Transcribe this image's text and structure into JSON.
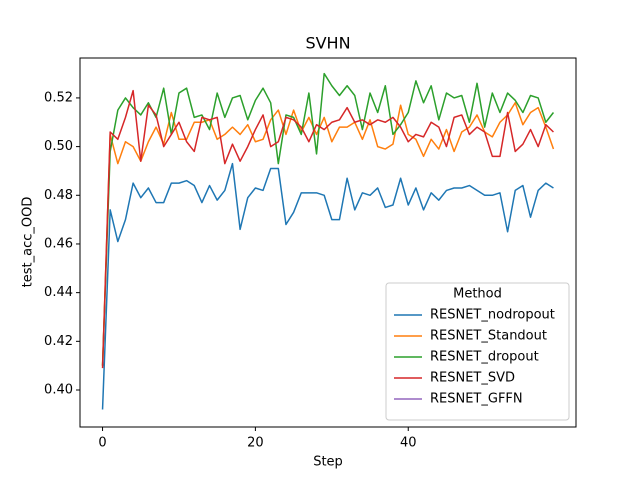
{
  "chart_data": {
    "type": "line",
    "title": "SVHN",
    "xlabel": "Step",
    "ylabel": "test_acc_OOD",
    "x": [
      0,
      1,
      2,
      3,
      4,
      5,
      6,
      7,
      8,
      9,
      10,
      11,
      12,
      13,
      14,
      15,
      16,
      17,
      18,
      19,
      20,
      21,
      22,
      23,
      24,
      25,
      26,
      27,
      28,
      29,
      30,
      31,
      32,
      33,
      34,
      35,
      36,
      37,
      38,
      39,
      40,
      41,
      42,
      43,
      44,
      45,
      46,
      47,
      48,
      49,
      50,
      51,
      52,
      53,
      54,
      55,
      56,
      57,
      58,
      59
    ],
    "series": [
      {
        "name": "RESNET_nodropout",
        "color": "#1f77b4",
        "values": [
          0.392,
          0.474,
          0.461,
          0.47,
          0.485,
          0.479,
          0.483,
          0.477,
          0.477,
          0.485,
          0.485,
          0.486,
          0.484,
          0.477,
          0.484,
          0.478,
          0.482,
          0.493,
          0.466,
          0.479,
          0.483,
          0.482,
          0.491,
          0.491,
          0.468,
          0.473,
          0.481,
          0.481,
          0.481,
          0.48,
          0.47,
          0.47,
          0.487,
          0.474,
          0.481,
          0.48,
          0.483,
          0.475,
          0.476,
          0.487,
          0.476,
          0.483,
          0.474,
          0.481,
          0.478,
          0.482,
          0.483,
          0.483,
          0.484,
          0.482,
          0.48,
          0.48,
          0.481,
          0.465,
          0.482,
          0.484,
          0.471,
          0.482,
          0.485,
          0.483
        ]
      },
      {
        "name": "RESNET_Standout",
        "color": "#ff7f0e",
        "values": [
          0.41,
          0.505,
          0.493,
          0.502,
          0.5,
          0.494,
          0.502,
          0.508,
          0.501,
          0.514,
          0.503,
          0.503,
          0.51,
          0.51,
          0.511,
          0.503,
          0.505,
          0.508,
          0.505,
          0.509,
          0.502,
          0.503,
          0.511,
          0.515,
          0.505,
          0.515,
          0.506,
          0.512,
          0.505,
          0.512,
          0.502,
          0.508,
          0.508,
          0.51,
          0.503,
          0.511,
          0.5,
          0.499,
          0.501,
          0.517,
          0.505,
          0.503,
          0.496,
          0.503,
          0.499,
          0.507,
          0.498,
          0.506,
          0.508,
          0.513,
          0.506,
          0.504,
          0.51,
          0.513,
          0.518,
          0.509,
          0.514,
          0.516,
          0.508,
          0.499
        ]
      },
      {
        "name": "RESNET_dropout",
        "color": "#2ca02c",
        "values": [
          0.41,
          0.498,
          0.515,
          0.52,
          0.516,
          0.513,
          0.518,
          0.512,
          0.524,
          0.505,
          0.522,
          0.524,
          0.512,
          0.513,
          0.507,
          0.522,
          0.512,
          0.52,
          0.521,
          0.511,
          0.519,
          0.524,
          0.518,
          0.493,
          0.513,
          0.512,
          0.505,
          0.522,
          0.497,
          0.53,
          0.525,
          0.521,
          0.525,
          0.521,
          0.507,
          0.522,
          0.514,
          0.525,
          0.505,
          0.509,
          0.514,
          0.527,
          0.518,
          0.525,
          0.511,
          0.522,
          0.52,
          0.521,
          0.51,
          0.526,
          0.508,
          0.522,
          0.514,
          0.522,
          0.519,
          0.514,
          0.521,
          0.52,
          0.51,
          0.514
        ]
      },
      {
        "name": "RESNET_SVD",
        "color": "#d62728",
        "values": [
          0.409,
          0.506,
          0.503,
          0.512,
          0.523,
          0.494,
          0.517,
          0.513,
          0.5,
          0.505,
          0.51,
          0.502,
          0.498,
          0.512,
          0.511,
          0.512,
          0.493,
          0.501,
          0.494,
          0.5,
          0.507,
          0.513,
          0.5,
          0.502,
          0.512,
          0.511,
          0.508,
          0.502,
          0.509,
          0.507,
          0.51,
          0.511,
          0.516,
          0.51,
          0.511,
          0.509,
          0.511,
          0.51,
          0.512,
          0.508,
          0.502,
          0.505,
          0.504,
          0.51,
          0.508,
          0.5,
          0.512,
          0.513,
          0.505,
          0.508,
          0.506,
          0.496,
          0.496,
          0.514,
          0.498,
          0.501,
          0.507,
          0.5,
          0.509,
          0.506
        ]
      },
      {
        "name": "RESNET_GFFN",
        "color": "#9467bd",
        "values": [
          null,
          null,
          null,
          null,
          null,
          null,
          null,
          null,
          null,
          null,
          null,
          null,
          null,
          null,
          null,
          null,
          null,
          null,
          null,
          null,
          null,
          null,
          null,
          null,
          null,
          null,
          null,
          null,
          null,
          null,
          null,
          null,
          null,
          null,
          null,
          null,
          null,
          null,
          null,
          null,
          null,
          null,
          null,
          null,
          null,
          null,
          null,
          null,
          null,
          null,
          null,
          null,
          null,
          null,
          null,
          null,
          null,
          null,
          null,
          null
        ]
      }
    ],
    "xlim": [
      -2.95,
      61.95
    ],
    "xticks": [
      0,
      20,
      40
    ],
    "ylim": [
      0.3848,
      0.5364
    ],
    "yticks": [
      {
        "value": 0.4,
        "label": "0.40"
      },
      {
        "value": 0.42,
        "label": "0.42"
      },
      {
        "value": 0.44,
        "label": "0.44"
      },
      {
        "value": 0.46,
        "label": "0.46"
      },
      {
        "value": 0.48,
        "label": "0.48"
      },
      {
        "value": 0.5,
        "label": "0.50"
      },
      {
        "value": 0.52,
        "label": "0.52"
      }
    ],
    "legend": {
      "title": "Method",
      "loc": "lower right"
    }
  }
}
